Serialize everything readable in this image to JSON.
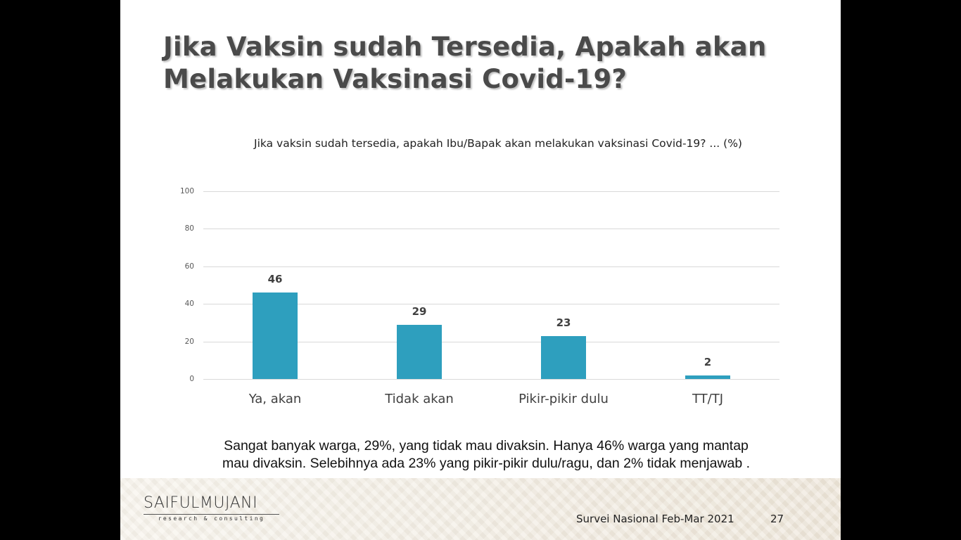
{
  "slide": {
    "title_line1": "Jika Vaksin sudah Tersedia, Apakah akan",
    "title_line2": "Melakukan Vaksinasi Covid-19?",
    "note_line1": "Sangat banyak warga, 29%, yang tidak mau divaksin. Hanya 46% warga yang mantap",
    "note_line2": "mau divaksin. Selebihnya ada 23% yang pikir-pikir dulu/ragu, dan 2% tidak menjawab .",
    "footer": "Survei Nasional Feb-Mar 2021",
    "page_number": "27"
  },
  "logo": {
    "name": "SAIFULMUJANI",
    "tagline": "research & consulting"
  },
  "colors": {
    "bar": "#2e9fbe",
    "gridline": "#d9d9d9",
    "title": "#4a4a4a"
  },
  "chart_data": {
    "type": "bar",
    "title": "Jika vaksin sudah tersedia, apakah Ibu/Bapak akan melakukan vaksinasi Covid-19? ... (%)",
    "categories": [
      "Ya, akan",
      "Tidak akan",
      "Pikir-pikir dulu",
      "TT/TJ"
    ],
    "values": [
      46,
      29,
      23,
      2
    ],
    "xlabel": "",
    "ylabel": "",
    "ylim": [
      0,
      100
    ],
    "yticks": [
      0,
      20,
      40,
      60,
      80,
      100
    ],
    "grid": true,
    "legend": "none",
    "data_labels": true
  }
}
